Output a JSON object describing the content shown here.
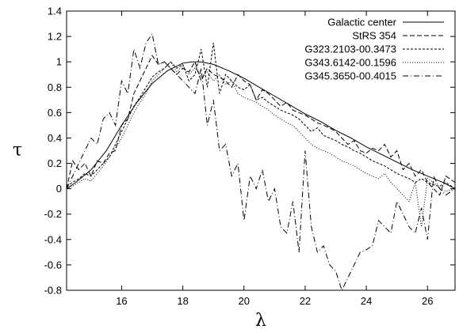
{
  "chart_data": {
    "type": "line",
    "xlabel": "λ",
    "ylabel": "τ",
    "xlim": [
      14.2,
      26.9
    ],
    "ylim": [
      -0.8,
      1.4
    ],
    "x_ticks": [
      16,
      18,
      20,
      22,
      24,
      26
    ],
    "y_ticks": [
      -0.8,
      -0.6,
      -0.4,
      -0.2,
      0,
      0.2,
      0.4,
      0.6,
      0.8,
      1,
      1.2,
      1.4
    ],
    "legend_position": "top-right",
    "grid": false,
    "series": [
      {
        "name": "Galactic center",
        "style": "solid",
        "x": [
          14.2,
          14.5,
          15.0,
          15.5,
          16.0,
          16.5,
          17.0,
          17.5,
          18.0,
          18.3,
          18.6,
          19.0,
          19.5,
          20.0,
          20.5,
          21.0,
          21.5,
          22.0,
          22.5,
          23.0,
          23.5,
          24.0,
          24.5,
          25.0,
          25.5,
          26.0,
          26.5,
          26.9
        ],
        "y": [
          0.0,
          0.05,
          0.15,
          0.3,
          0.5,
          0.68,
          0.83,
          0.93,
          0.99,
          1.0,
          1.0,
          0.98,
          0.93,
          0.87,
          0.8,
          0.73,
          0.66,
          0.59,
          0.53,
          0.46,
          0.4,
          0.33,
          0.27,
          0.21,
          0.15,
          0.1,
          0.05,
          0.0
        ]
      },
      {
        "name": "StRS 354",
        "style": "dashed",
        "x": [
          14.2,
          14.4,
          14.6,
          14.8,
          15.0,
          15.2,
          15.4,
          15.6,
          15.8,
          16.0,
          16.2,
          16.4,
          16.6,
          16.8,
          17.0,
          17.2,
          17.4,
          17.6,
          17.8,
          18.0,
          18.2,
          18.4,
          18.6,
          18.8,
          19.0,
          19.2,
          19.4,
          19.6,
          19.8,
          20.0,
          20.2,
          20.4,
          20.6,
          20.8,
          21.0,
          21.2,
          21.4,
          21.6,
          21.8,
          22.0,
          22.2,
          22.4,
          22.6,
          22.8,
          23.0,
          23.2,
          23.4,
          23.6,
          23.8,
          24.0,
          24.2,
          24.4,
          24.6,
          24.8,
          25.0,
          25.2,
          25.4,
          25.6,
          25.8,
          26.0,
          26.2,
          26.4,
          26.6,
          26.9
        ],
        "y": [
          0.0,
          0.22,
          0.15,
          0.2,
          0.1,
          0.22,
          0.2,
          0.28,
          0.3,
          0.5,
          0.55,
          0.75,
          0.85,
          0.95,
          1.05,
          0.98,
          1.0,
          0.95,
          0.9,
          0.95,
          0.92,
          1.0,
          0.85,
          0.95,
          0.9,
          0.88,
          0.85,
          0.8,
          0.9,
          0.85,
          0.82,
          0.7,
          0.78,
          0.75,
          0.7,
          0.65,
          0.68,
          0.62,
          0.6,
          0.58,
          0.55,
          0.52,
          0.5,
          0.48,
          0.45,
          0.4,
          0.35,
          0.38,
          0.3,
          0.28,
          0.32,
          0.3,
          0.35,
          0.25,
          0.3,
          0.15,
          0.2,
          0.1,
          0.15,
          0.05,
          0.0,
          -0.05,
          0.1,
          0.05
        ]
      },
      {
        "name": "G323.2103-00.3473",
        "style": "short-dashed",
        "x": [
          14.2,
          14.4,
          14.6,
          14.8,
          15.0,
          15.2,
          15.4,
          15.6,
          15.8,
          16.0,
          16.2,
          16.4,
          16.6,
          16.8,
          17.0,
          17.2,
          17.4,
          17.6,
          17.8,
          18.0,
          18.2,
          18.4,
          18.6,
          18.8,
          19.0,
          19.2,
          19.4,
          19.6,
          19.8,
          20.0,
          20.2,
          20.4,
          20.6,
          20.8,
          21.0,
          21.2,
          21.4,
          21.6,
          21.8,
          22.0,
          22.2,
          22.4,
          22.6,
          22.8,
          23.0,
          23.2,
          23.4,
          23.6,
          23.8,
          24.0,
          24.2,
          24.4,
          24.6,
          24.8,
          25.0,
          25.2,
          25.4,
          25.6,
          25.8,
          26.0,
          26.2,
          26.4,
          26.6,
          26.9
        ],
        "y": [
          0.02,
          0.05,
          0.08,
          0.12,
          0.1,
          0.15,
          0.2,
          0.25,
          0.35,
          0.45,
          0.55,
          0.65,
          0.72,
          0.8,
          0.88,
          0.92,
          0.95,
          1.0,
          0.95,
          0.98,
          0.85,
          0.9,
          1.1,
          0.8,
          1.15,
          0.75,
          0.9,
          0.85,
          0.8,
          0.78,
          0.82,
          0.7,
          0.72,
          0.68,
          0.65,
          0.62,
          0.6,
          0.58,
          0.55,
          0.5,
          0.45,
          0.48,
          0.42,
          0.4,
          0.38,
          0.35,
          0.33,
          0.3,
          0.28,
          0.25,
          0.22,
          0.2,
          0.18,
          0.15,
          0.12,
          0.1,
          0.08,
          0.05,
          0.08,
          0.05,
          0.03,
          0.02,
          0.05,
          0.0
        ]
      },
      {
        "name": "G343.6142-00.1596",
        "style": "dotted",
        "x": [
          14.2,
          14.4,
          14.6,
          14.8,
          15.0,
          15.2,
          15.4,
          15.6,
          15.8,
          16.0,
          16.2,
          16.4,
          16.6,
          16.8,
          17.0,
          17.2,
          17.4,
          17.6,
          17.8,
          18.0,
          18.2,
          18.4,
          18.6,
          18.8,
          19.0,
          19.2,
          19.4,
          19.6,
          19.8,
          20.0,
          20.2,
          20.4,
          20.6,
          20.8,
          21.0,
          21.2,
          21.4,
          21.6,
          21.8,
          22.0,
          22.2,
          22.4,
          22.6,
          22.8,
          23.0,
          23.2,
          23.4,
          23.6,
          23.8,
          24.0,
          24.2,
          24.4,
          24.6,
          24.8,
          25.0,
          25.2,
          25.4,
          25.6,
          25.8,
          26.0,
          26.2,
          26.4,
          26.6,
          26.9
        ],
        "y": [
          0.0,
          0.02,
          0.05,
          0.08,
          0.06,
          0.12,
          0.18,
          0.25,
          0.32,
          0.4,
          0.5,
          0.6,
          0.68,
          0.75,
          0.85,
          0.9,
          0.95,
          1.0,
          0.92,
          0.97,
          0.9,
          0.95,
          0.88,
          0.92,
          0.85,
          0.9,
          0.82,
          0.85,
          0.75,
          0.72,
          0.7,
          0.68,
          0.65,
          0.62,
          0.58,
          0.55,
          0.52,
          0.5,
          0.45,
          0.4,
          0.35,
          0.32,
          0.3,
          0.28,
          0.25,
          0.22,
          0.2,
          0.18,
          0.15,
          0.12,
          0.1,
          0.08,
          0.12,
          0.05,
          0.0,
          -0.05,
          -0.1,
          0.05,
          -0.3,
          0.08,
          0.05,
          0.0,
          -0.02,
          0.0
        ]
      },
      {
        "name": "G345.3650-00.4015",
        "style": "dash-dot",
        "x": [
          14.2,
          14.4,
          14.6,
          14.8,
          15.0,
          15.2,
          15.4,
          15.6,
          15.8,
          16.0,
          16.2,
          16.4,
          16.6,
          16.8,
          17.0,
          17.2,
          17.4,
          17.6,
          17.8,
          18.0,
          18.2,
          18.4,
          18.6,
          18.8,
          19.0,
          19.2,
          19.4,
          19.6,
          19.8,
          20.0,
          20.2,
          20.4,
          20.6,
          20.8,
          21.0,
          21.2,
          21.4,
          21.6,
          21.8,
          22.0,
          22.2,
          22.4,
          22.6,
          22.8,
          23.0,
          23.2,
          23.4,
          23.6,
          23.8,
          24.0,
          24.2,
          24.4,
          24.6,
          24.8,
          25.0,
          25.2,
          25.4,
          25.6,
          25.8,
          26.0,
          26.2,
          26.4,
          26.6,
          26.9
        ],
        "y": [
          0.0,
          0.1,
          0.2,
          0.3,
          0.4,
          0.35,
          0.55,
          0.6,
          0.5,
          0.85,
          0.75,
          1.1,
          0.95,
          1.15,
          1.22,
          0.98,
          1.0,
          0.95,
          0.9,
          0.85,
          0.8,
          0.75,
          0.95,
          0.5,
          0.7,
          0.3,
          0.35,
          0.1,
          0.2,
          -0.25,
          0.1,
          0.0,
          0.15,
          -0.1,
          0.0,
          -0.3,
          -0.35,
          -0.1,
          -0.5,
          0.3,
          -0.3,
          -0.5,
          -0.45,
          -0.6,
          -0.65,
          -0.8,
          -0.7,
          -0.6,
          -0.5,
          -0.48,
          -0.45,
          -0.25,
          -0.3,
          -0.35,
          -0.1,
          -0.2,
          -0.3,
          -0.35,
          -0.15,
          -0.4,
          0.1,
          0.0,
          -0.05,
          0.0
        ]
      }
    ]
  }
}
